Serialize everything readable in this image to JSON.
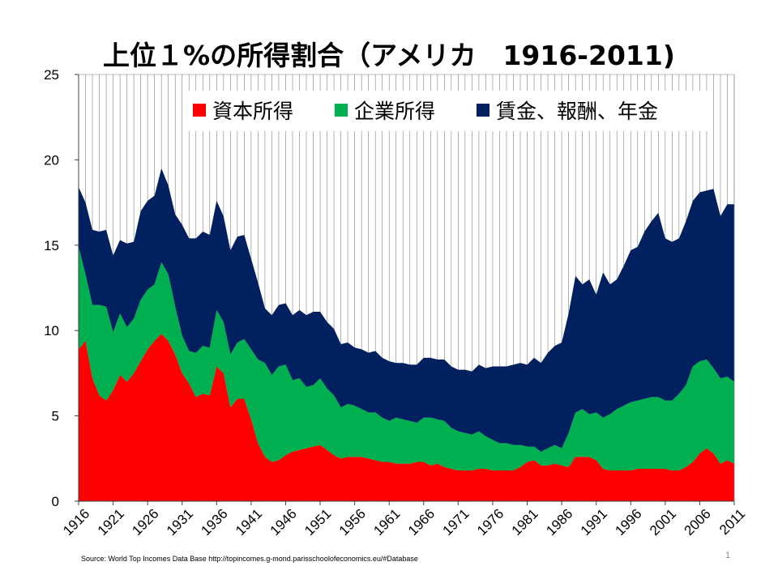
{
  "title": "上位１%の所得割合（アメリカ　1916-2011)",
  "source": "Source: World Top Incomes Data Base http://topincomes.g-mond.parisschoolofeconomics.eu/#Database",
  "page_number": "1",
  "colors": {
    "capital_income": "#ff0000",
    "business_income": "#00b050",
    "wages": "#002060",
    "plot_background": "#ffffff",
    "gridline": "#7f7f7f"
  },
  "chart_data": {
    "type": "area",
    "stacked": true,
    "title": "上位１%の所得割合（アメリカ　1916-2011)",
    "xlabel": "",
    "ylabel": "",
    "xlim": [
      1916,
      2011
    ],
    "ylim": [
      0,
      25
    ],
    "y_ticks": [
      "0",
      "5",
      "10",
      "15",
      "20",
      "25"
    ],
    "x_ticks": [
      "1916",
      "1921",
      "1926",
      "1931",
      "1936",
      "1941",
      "1946",
      "1951",
      "1956",
      "1961",
      "1966",
      "1971",
      "1976",
      "1981",
      "1986",
      "1991",
      "1996",
      "2001",
      "2006",
      "2011"
    ],
    "grid": "vertical lines at every year",
    "legend": "top-right, inside plot, horizontal",
    "x": [
      1916,
      1917,
      1918,
      1919,
      1920,
      1921,
      1922,
      1923,
      1924,
      1925,
      1926,
      1927,
      1928,
      1929,
      1930,
      1931,
      1932,
      1933,
      1934,
      1935,
      1936,
      1937,
      1938,
      1939,
      1940,
      1941,
      1942,
      1943,
      1944,
      1945,
      1946,
      1947,
      1948,
      1949,
      1950,
      1951,
      1952,
      1953,
      1954,
      1955,
      1956,
      1957,
      1958,
      1959,
      1960,
      1961,
      1962,
      1963,
      1964,
      1965,
      1966,
      1967,
      1968,
      1969,
      1970,
      1971,
      1972,
      1973,
      1974,
      1975,
      1976,
      1977,
      1978,
      1979,
      1980,
      1981,
      1982,
      1983,
      1984,
      1985,
      1986,
      1987,
      1988,
      1989,
      1990,
      1991,
      1992,
      1993,
      1994,
      1995,
      1996,
      1997,
      1998,
      1999,
      2000,
      2001,
      2002,
      2003,
      2004,
      2005,
      2006,
      2007,
      2008,
      2009,
      2010,
      2011
    ],
    "series": [
      {
        "name": "資本所得",
        "color": "#ff0000",
        "values": [
          8.9,
          9.4,
          7.2,
          6.2,
          5.9,
          6.5,
          7.4,
          7.0,
          7.5,
          8.2,
          8.9,
          9.4,
          9.8,
          9.4,
          8.6,
          7.5,
          6.9,
          6.1,
          6.3,
          6.2,
          7.9,
          7.5,
          5.5,
          6.0,
          6.0,
          4.8,
          3.4,
          2.6,
          2.3,
          2.4,
          2.7,
          2.9,
          3.0,
          3.1,
          3.2,
          3.3,
          3.0,
          2.7,
          2.5,
          2.6,
          2.6,
          2.6,
          2.5,
          2.4,
          2.3,
          2.3,
          2.2,
          2.2,
          2.2,
          2.3,
          2.3,
          2.1,
          2.2,
          2.0,
          1.9,
          1.8,
          1.8,
          1.8,
          1.9,
          1.9,
          1.8,
          1.8,
          1.8,
          1.8,
          2.0,
          2.3,
          2.4,
          2.1,
          2.1,
          2.2,
          2.1,
          2.0,
          2.6,
          2.6,
          2.6,
          2.4,
          1.9,
          1.8,
          1.8,
          1.8,
          1.8,
          1.9,
          1.9,
          1.9,
          1.9,
          1.9,
          1.8,
          1.8,
          2.0,
          2.3,
          2.8,
          3.1,
          2.8,
          2.2,
          2.4,
          2.2
        ]
      },
      {
        "name": "企業所得",
        "color": "#00b050",
        "values": [
          6.0,
          3.9,
          4.3,
          5.3,
          5.5,
          3.4,
          3.6,
          3.2,
          3.2,
          3.6,
          3.5,
          3.3,
          4.2,
          3.9,
          2.8,
          2.2,
          1.9,
          2.6,
          2.8,
          2.8,
          3.3,
          3.0,
          3.1,
          3.3,
          3.5,
          4.1,
          4.9,
          5.5,
          5.1,
          5.5,
          5.3,
          4.2,
          4.2,
          3.6,
          3.6,
          3.9,
          3.6,
          3.5,
          3.0,
          3.1,
          3.0,
          2.8,
          2.7,
          2.8,
          2.6,
          2.4,
          2.7,
          2.6,
          2.5,
          2.3,
          2.6,
          2.8,
          2.6,
          2.7,
          2.4,
          2.3,
          2.2,
          2.1,
          2.2,
          1.9,
          1.8,
          1.6,
          1.6,
          1.5,
          1.3,
          0.9,
          0.8,
          0.8,
          1.0,
          1.1,
          1.0,
          2.0,
          2.6,
          2.8,
          2.5,
          2.8,
          3.0,
          3.3,
          3.6,
          3.8,
          4.0,
          4.0,
          4.1,
          4.2,
          4.2,
          4.0,
          4.1,
          4.5,
          4.8,
          5.6,
          5.4,
          5.2,
          5.0,
          5.0,
          4.9,
          4.8
        ]
      },
      {
        "name": "賃金、報酬、年金",
        "color": "#002060",
        "values": [
          3.5,
          4.2,
          4.4,
          4.3,
          4.5,
          4.5,
          4.3,
          4.9,
          4.5,
          5.2,
          5.2,
          5.2,
          5.5,
          5.2,
          5.4,
          6.5,
          6.6,
          6.7,
          6.7,
          6.6,
          6.4,
          6.2,
          6.1,
          6.2,
          6.1,
          5.3,
          4.5,
          3.2,
          3.5,
          3.6,
          3.6,
          3.8,
          4.0,
          4.2,
          4.3,
          3.9,
          3.9,
          3.9,
          3.7,
          3.6,
          3.4,
          3.5,
          3.5,
          3.6,
          3.5,
          3.5,
          3.2,
          3.3,
          3.3,
          3.4,
          3.5,
          3.5,
          3.5,
          3.6,
          3.6,
          3.6,
          3.7,
          3.7,
          3.9,
          4.0,
          4.3,
          4.5,
          4.5,
          4.7,
          4.8,
          4.8,
          5.2,
          5.2,
          5.6,
          5.8,
          6.2,
          7.0,
          8.0,
          7.3,
          7.9,
          6.9,
          8.5,
          7.6,
          7.6,
          8.2,
          8.9,
          9.0,
          9.8,
          10.3,
          10.8,
          9.5,
          9.3,
          9.1,
          9.6,
          9.7,
          9.9,
          9.9,
          10.5,
          9.5,
          10.1,
          10.4
        ]
      }
    ]
  }
}
